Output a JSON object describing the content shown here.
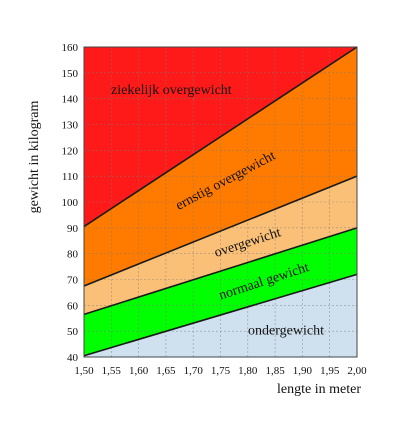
{
  "chart_data": {
    "type": "area",
    "xlabel": "lengte in meter",
    "ylabel": "gewicht in kilogram",
    "xlim": [
      1.5,
      2.0
    ],
    "ylim": [
      40,
      160
    ],
    "x_ticks": [
      1.5,
      1.55,
      1.6,
      1.65,
      1.7,
      1.75,
      1.8,
      1.85,
      1.9,
      1.95,
      2.0
    ],
    "x_tick_labels": [
      "1,50",
      "1,55",
      "1,60",
      "1,65",
      "1,70",
      "1,75",
      "1,80",
      "1,85",
      "1,90",
      "1,95",
      "2,00"
    ],
    "y_ticks": [
      40,
      50,
      60,
      70,
      80,
      90,
      100,
      110,
      120,
      130,
      140,
      150,
      160
    ],
    "y_tick_labels": [
      "40",
      "50",
      "60",
      "70",
      "80",
      "90",
      "100",
      "110",
      "120",
      "130",
      "140",
      "150",
      "160"
    ],
    "boundaries": [
      {
        "x": [
          1.5,
          2.0
        ],
        "y": [
          40.5,
          72
        ]
      },
      {
        "x": [
          1.5,
          2.0
        ],
        "y": [
          56.5,
          90
        ]
      },
      {
        "x": [
          1.5,
          2.0
        ],
        "y": [
          67.5,
          110
        ]
      },
      {
        "x": [
          1.5,
          2.0
        ],
        "y": [
          90.5,
          160
        ]
      }
    ],
    "regions": [
      {
        "label": "ondergewicht",
        "color": "#cfe1ef",
        "label_x": 1.87,
        "label_y": 50,
        "label_rotation": 0
      },
      {
        "label": "normaal gewicht",
        "color": "#00ff00",
        "label_x": 1.83,
        "label_y": 69,
        "label_rotation": -18
      },
      {
        "label": "overgewicht",
        "color": "#fbc078",
        "label_x": 1.8,
        "label_y": 84,
        "label_rotation": -18
      },
      {
        "label": "ernstig overgewicht",
        "color": "#ff7b00",
        "label_x": 1.76,
        "label_y": 108,
        "label_rotation": -28
      },
      {
        "label": "ziekelijk overgewicht",
        "color": "#ff1a1a",
        "label_x": 1.66,
        "label_y": 143,
        "label_rotation": 0
      }
    ],
    "grid": true
  }
}
